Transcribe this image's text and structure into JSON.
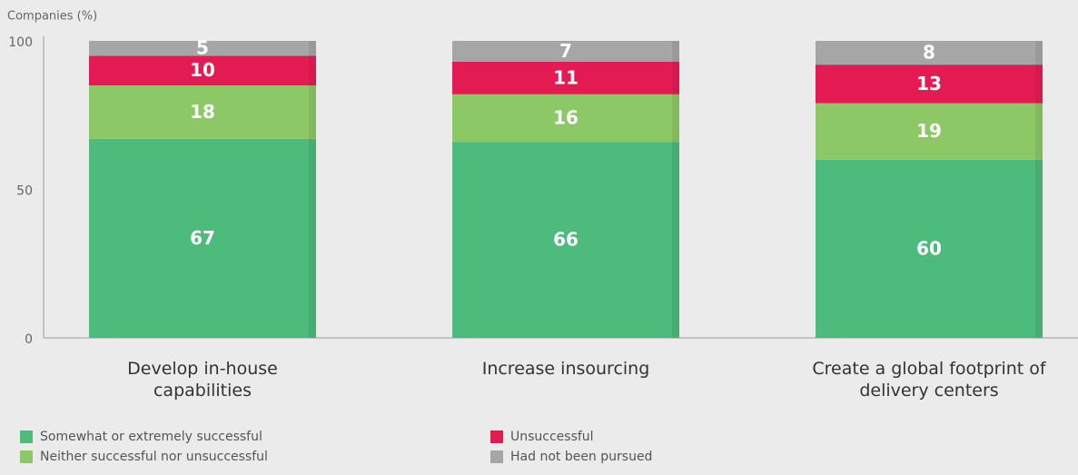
{
  "chart_data": {
    "type": "stacked_bar",
    "y_label": "Companies (%)",
    "categories": [
      "Develop in-house capabilities",
      "Increase insourcing",
      "Create a global footprint of delivery centers"
    ],
    "series": [
      {
        "name": "Somewhat or extremely successful",
        "color": "#4cbb7c",
        "values": [
          67,
          66,
          60
        ]
      },
      {
        "name": "Neither successful nor unsuccessful",
        "color": "#8cc865",
        "values": [
          18,
          16,
          19
        ]
      },
      {
        "name": "Unsuccessful",
        "color": "#e41b53",
        "values": [
          10,
          11,
          13
        ]
      },
      {
        "name": "Had not been pursued",
        "color": "#a6a6a6",
        "values": [
          5,
          7,
          8
        ]
      }
    ],
    "ylim": [
      0,
      100
    ],
    "yticks": [
      0,
      50,
      100
    ]
  }
}
